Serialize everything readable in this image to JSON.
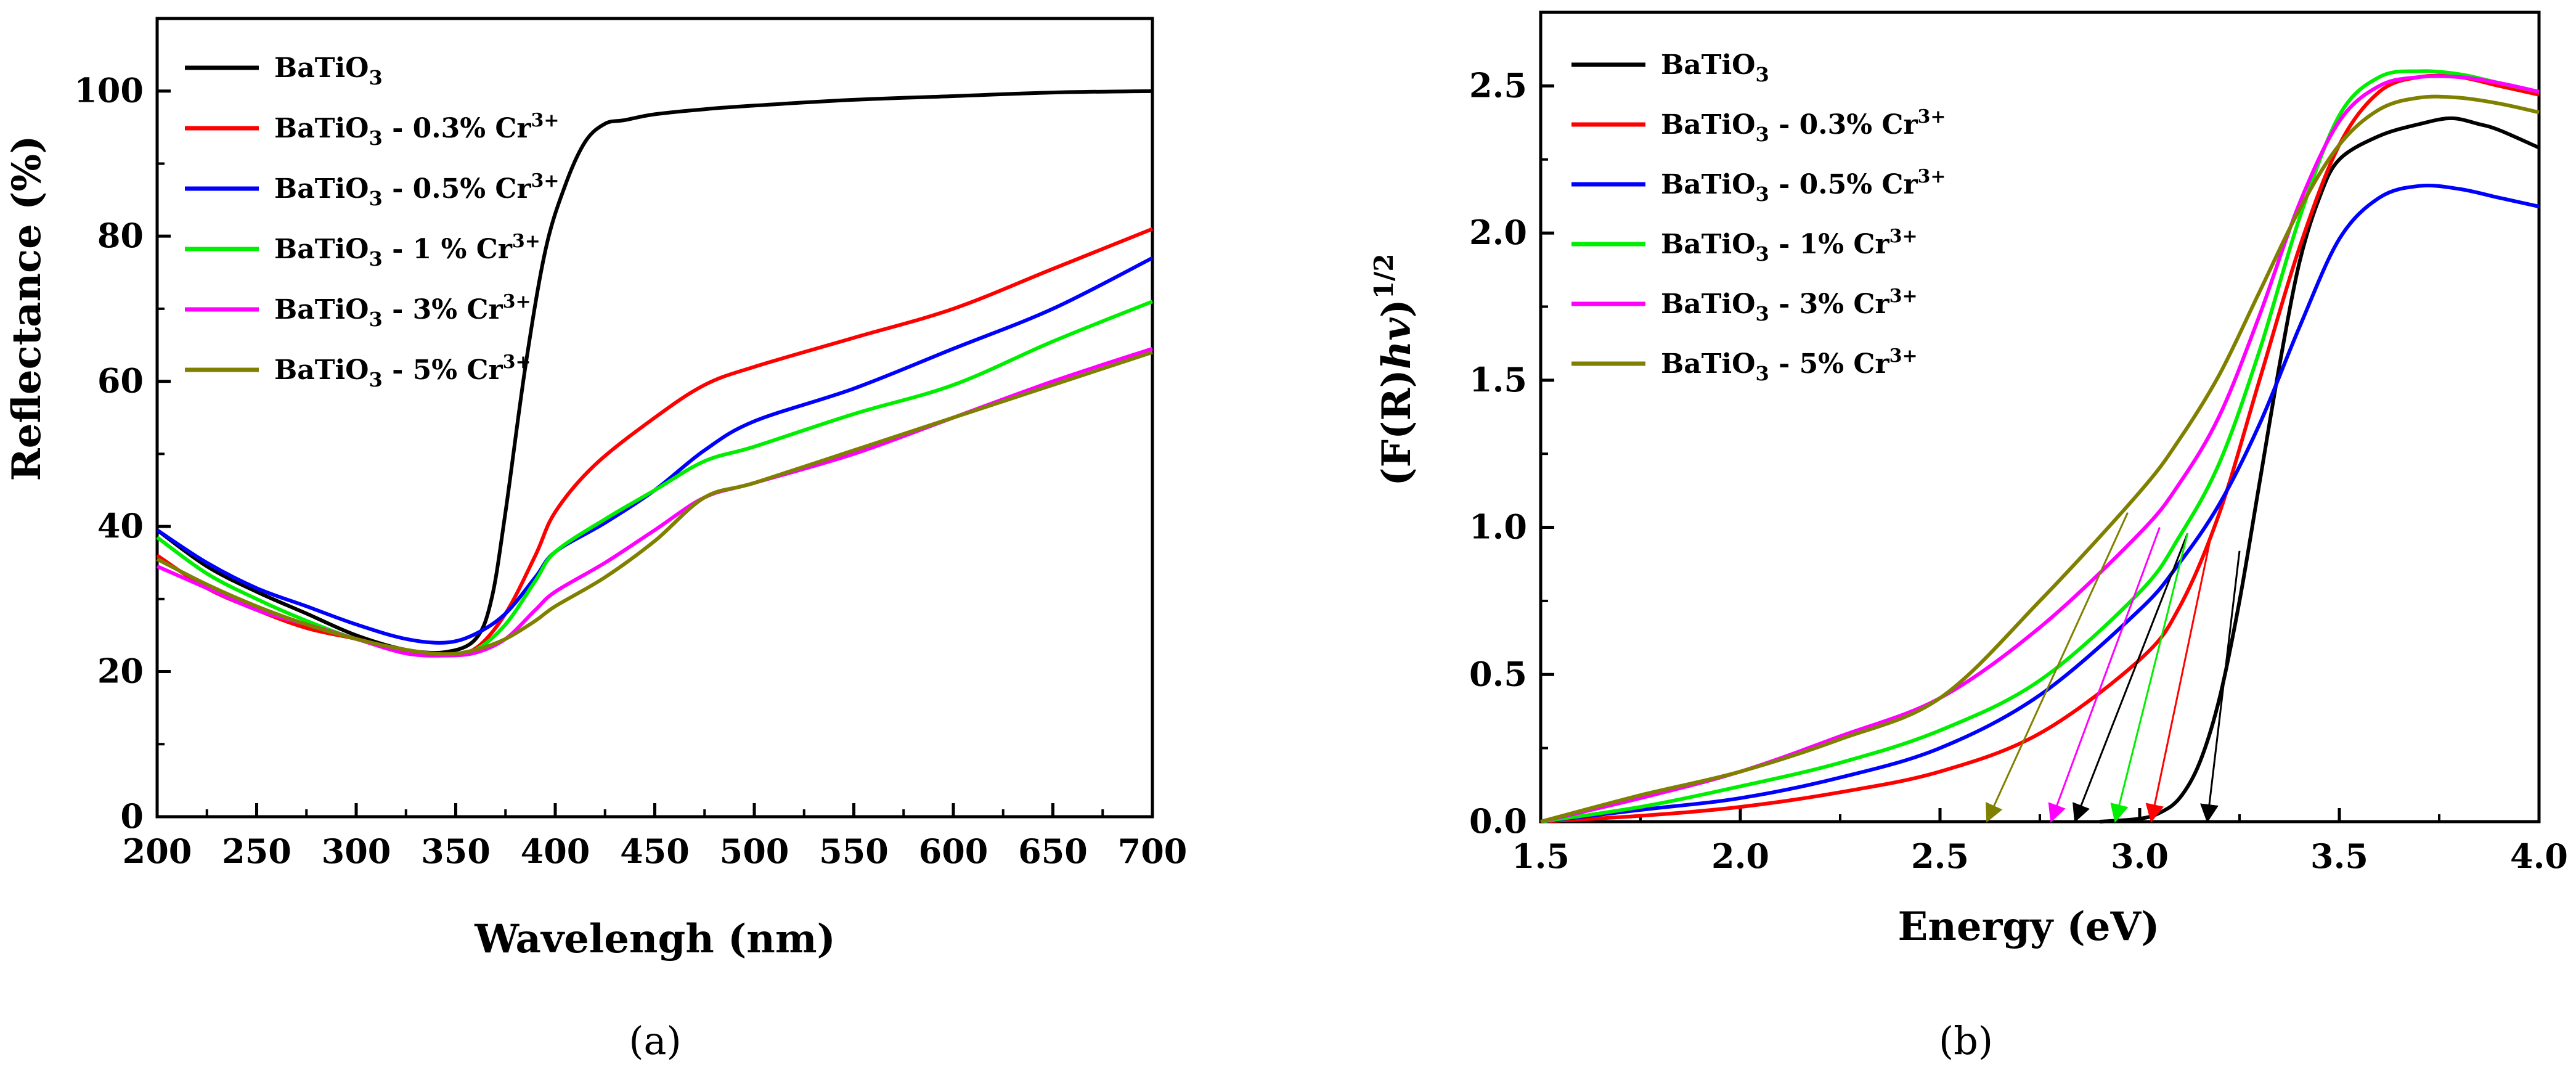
{
  "figure": {
    "panels": [
      "a",
      "b"
    ]
  },
  "chart_data": [
    {
      "id": "a",
      "type": "line",
      "panel_label": "(a)",
      "title": "",
      "xlabel": "Wavelengh (nm)",
      "ylabel": "Reflectance (%)",
      "xlim": [
        200,
        700
      ],
      "ylim": [
        0,
        110
      ],
      "xticks": [
        200,
        250,
        300,
        350,
        400,
        450,
        500,
        550,
        600,
        650,
        700
      ],
      "yticks": [
        0,
        20,
        40,
        60,
        80,
        100
      ],
      "grid": false,
      "legend_position": "top-left",
      "series": [
        {
          "name": "BaTiO3",
          "label_main": "BaTiO",
          "label_sub": "3",
          "label_rest": "",
          "label_sup": "",
          "color": "#000000",
          "x": [
            200,
            225,
            250,
            275,
            300,
            325,
            345,
            360,
            368,
            375,
            385,
            395,
            405,
            415,
            425,
            435,
            450,
            475,
            500,
            550,
            600,
            650,
            700
          ],
          "y": [
            39.5,
            34.5,
            31,
            28,
            25,
            23,
            22.7,
            24.5,
            30,
            42,
            62,
            78,
            87,
            93,
            95.5,
            96,
            96.8,
            97.5,
            98,
            98.8,
            99.3,
            99.8,
            100
          ]
        },
        {
          "name": "BaTiO3 - 0.3% Cr3+",
          "label_main": "BaTiO",
          "label_sub": "3",
          "label_rest": " - 0.3% Cr",
          "label_sup": "3+",
          "color": "#ff0000",
          "x": [
            200,
            225,
            250,
            275,
            300,
            325,
            345,
            360,
            375,
            390,
            400,
            420,
            450,
            475,
            500,
            550,
            600,
            650,
            700
          ],
          "y": [
            36,
            31.5,
            28.5,
            26,
            24.5,
            22.8,
            22.4,
            23.2,
            28,
            36,
            42,
            48.5,
            55,
            59.5,
            62,
            66,
            70,
            75.5,
            81
          ]
        },
        {
          "name": "BaTiO3 - 0.5% Cr3+",
          "label_main": "BaTiO",
          "label_sub": "3",
          "label_rest": " - 0.5% Cr",
          "label_sup": "3+",
          "color": "#0000ff",
          "x": [
            200,
            225,
            250,
            275,
            300,
            325,
            345,
            360,
            375,
            390,
            400,
            425,
            450,
            475,
            500,
            550,
            600,
            650,
            700
          ],
          "y": [
            39.5,
            35,
            31.5,
            29,
            26.5,
            24.5,
            24,
            25.2,
            28,
            33,
            36.5,
            40.5,
            45,
            50.5,
            54.5,
            59,
            64.5,
            70,
            77
          ]
        },
        {
          "name": "BaTiO3 - 1 % Cr3+",
          "label_main": "BaTiO",
          "label_sub": "3",
          "label_rest": " - 1 % Cr",
          "label_sup": "3+",
          "color": "#00ee00",
          "x": [
            200,
            225,
            250,
            275,
            300,
            325,
            345,
            360,
            375,
            390,
            400,
            425,
            450,
            475,
            500,
            550,
            600,
            650,
            700
          ],
          "y": [
            38.5,
            33.5,
            30,
            27,
            24.5,
            23,
            22.3,
            23,
            26.5,
            32.5,
            36.5,
            41,
            45,
            49,
            51,
            55.5,
            59.5,
            65.5,
            71
          ]
        },
        {
          "name": "BaTiO3 - 3% Cr3+",
          "label_main": "BaTiO",
          "label_sub": "3",
          "label_rest": " - 3% Cr",
          "label_sup": "3+",
          "color": "#ff00ff",
          "x": [
            200,
            225,
            250,
            275,
            300,
            325,
            345,
            360,
            375,
            390,
            400,
            425,
            450,
            475,
            500,
            550,
            600,
            650,
            700
          ],
          "y": [
            34.5,
            31.5,
            28.5,
            26.5,
            24.5,
            22.5,
            22.2,
            22.6,
            24.5,
            28.5,
            31,
            35,
            39.5,
            44,
            46,
            50,
            55,
            60,
            64.5
          ]
        },
        {
          "name": "BaTiO3 - 5% Cr3+",
          "label_main": "BaTiO",
          "label_sub": "3",
          "label_rest": " - 5% Cr",
          "label_sup": "3+",
          "color": "#808000",
          "x": [
            200,
            225,
            250,
            275,
            300,
            325,
            345,
            360,
            375,
            390,
            400,
            425,
            450,
            475,
            500,
            550,
            600,
            650,
            700
          ],
          "y": [
            35.5,
            32,
            29,
            26.5,
            24.5,
            23,
            22.4,
            23,
            24.5,
            27,
            29,
            33,
            38,
            44,
            46,
            50.5,
            55,
            59.5,
            64
          ]
        }
      ]
    },
    {
      "id": "b",
      "type": "line",
      "panel_label": "(b)",
      "title": "",
      "xlabel": "Energy (eV)",
      "ylabel_main": "(F(R)",
      "ylabel_italic": "hv",
      "ylabel_close": ")",
      "ylabel_sup": "1/2",
      "xlim": [
        1.5,
        4.0
      ],
      "ylim": [
        0.0,
        2.75
      ],
      "xticks": [
        "1.5",
        "2.0",
        "2.5",
        "3.0",
        "3.5",
        "4.0"
      ],
      "yticks": [
        "0.0",
        "0.5",
        "1.0",
        "1.5",
        "2.0",
        "2.5"
      ],
      "grid": false,
      "legend_position": "top-left",
      "series": [
        {
          "name": "BaTiO3",
          "label_main": "BaTiO",
          "label_sub": "3",
          "label_rest": "",
          "label_sup": "",
          "color": "#000000",
          "x": [
            2.9,
            3.0,
            3.05,
            3.1,
            3.15,
            3.2,
            3.25,
            3.3,
            3.35,
            3.4,
            3.45,
            3.5,
            3.6,
            3.7,
            3.78,
            3.85,
            3.9,
            4.0
          ],
          "y": [
            0.0,
            0.01,
            0.03,
            0.08,
            0.2,
            0.42,
            0.75,
            1.15,
            1.55,
            1.9,
            2.12,
            2.25,
            2.33,
            2.37,
            2.39,
            2.37,
            2.35,
            2.29
          ]
        },
        {
          "name": "BaTiO3 - 0.3% Cr3+",
          "label_main": "BaTiO",
          "label_sub": "3",
          "label_rest": " - 0.3% Cr",
          "label_sup": "3+",
          "color": "#ff0000",
          "x": [
            1.5,
            1.75,
            2.0,
            2.25,
            2.5,
            2.75,
            3.0,
            3.1,
            3.2,
            3.3,
            3.4,
            3.5,
            3.6,
            3.7,
            3.8,
            3.9,
            4.0
          ],
          "y": [
            0.0,
            0.02,
            0.05,
            0.1,
            0.17,
            0.3,
            0.55,
            0.73,
            1.05,
            1.5,
            1.95,
            2.3,
            2.48,
            2.53,
            2.53,
            2.5,
            2.47
          ]
        },
        {
          "name": "BaTiO3 - 0.5% Cr3+",
          "label_main": "BaTiO",
          "label_sub": "3",
          "label_rest": " - 0.5% Cr",
          "label_sup": "3+",
          "color": "#0000ff",
          "x": [
            1.5,
            1.75,
            2.0,
            2.25,
            2.5,
            2.75,
            3.0,
            3.1,
            3.2,
            3.3,
            3.4,
            3.5,
            3.6,
            3.7,
            3.8,
            3.9,
            4.0
          ],
          "y": [
            0.0,
            0.04,
            0.08,
            0.15,
            0.25,
            0.43,
            0.72,
            0.88,
            1.08,
            1.35,
            1.68,
            1.98,
            2.12,
            2.16,
            2.15,
            2.12,
            2.09
          ]
        },
        {
          "name": "BaTiO3 - 1% Cr3+",
          "label_main": "BaTiO",
          "label_sub": "3",
          "label_rest": " - 1% Cr",
          "label_sup": "3+",
          "color": "#00ee00",
          "x": [
            1.5,
            1.75,
            2.0,
            2.25,
            2.5,
            2.75,
            3.0,
            3.1,
            3.2,
            3.3,
            3.4,
            3.5,
            3.6,
            3.7,
            3.8,
            3.9,
            4.0
          ],
          "y": [
            0.0,
            0.05,
            0.12,
            0.2,
            0.31,
            0.48,
            0.78,
            0.97,
            1.22,
            1.6,
            2.05,
            2.4,
            2.53,
            2.55,
            2.54,
            2.51,
            2.48
          ]
        },
        {
          "name": "BaTiO3 - 3% Cr3+",
          "label_main": "BaTiO",
          "label_sub": "3",
          "label_rest": " - 3% Cr",
          "label_sup": "3+",
          "color": "#ff00ff",
          "x": [
            1.5,
            1.75,
            2.0,
            2.25,
            2.5,
            2.75,
            3.0,
            3.1,
            3.2,
            3.3,
            3.4,
            3.5,
            3.6,
            3.7,
            3.8,
            3.9,
            4.0
          ],
          "y": [
            0.0,
            0.08,
            0.17,
            0.29,
            0.42,
            0.66,
            0.98,
            1.15,
            1.38,
            1.72,
            2.1,
            2.38,
            2.5,
            2.53,
            2.53,
            2.51,
            2.48
          ]
        },
        {
          "name": "BaTiO3 - 5% Cr3+",
          "label_main": "BaTiO",
          "label_sub": "3",
          "label_rest": " - 5% Cr",
          "label_sup": "3+",
          "color": "#808000",
          "x": [
            1.5,
            1.75,
            2.0,
            2.25,
            2.5,
            2.75,
            3.0,
            3.1,
            3.2,
            3.3,
            3.4,
            3.5,
            3.6,
            3.7,
            3.8,
            3.9,
            4.0
          ],
          "y": [
            0.0,
            0.09,
            0.17,
            0.28,
            0.42,
            0.75,
            1.12,
            1.3,
            1.52,
            1.8,
            2.08,
            2.3,
            2.42,
            2.46,
            2.46,
            2.44,
            2.41
          ]
        }
      ],
      "tangents": [
        {
          "series": "BaTiO3",
          "color": "#000000",
          "from": [
            3.25,
            0.92
          ],
          "to": [
            3.17,
            0.0
          ]
        },
        {
          "series": "BaTiO3 - 0.3% Cr3+",
          "color": "#ff0000",
          "from": [
            3.18,
            0.98
          ],
          "to": [
            3.03,
            0.0
          ]
        },
        {
          "series": "BaTiO3 - 0.5% Cr3+",
          "color": "#000000",
          "from": [
            3.12,
            0.98
          ],
          "to": [
            2.84,
            0.0
          ]
        },
        {
          "series": "BaTiO3 - 1% Cr3+",
          "color": "#00ee00",
          "from": [
            3.12,
            0.98
          ],
          "to": [
            2.94,
            0.0
          ]
        },
        {
          "series": "BaTiO3 - 3% Cr3+",
          "color": "#ff00ff",
          "from": [
            3.05,
            1.0
          ],
          "to": [
            2.78,
            0.0
          ]
        },
        {
          "series": "BaTiO3 - 5% Cr3+",
          "color": "#808000",
          "from": [
            2.97,
            1.05
          ],
          "to": [
            2.62,
            0.0
          ]
        }
      ]
    }
  ]
}
